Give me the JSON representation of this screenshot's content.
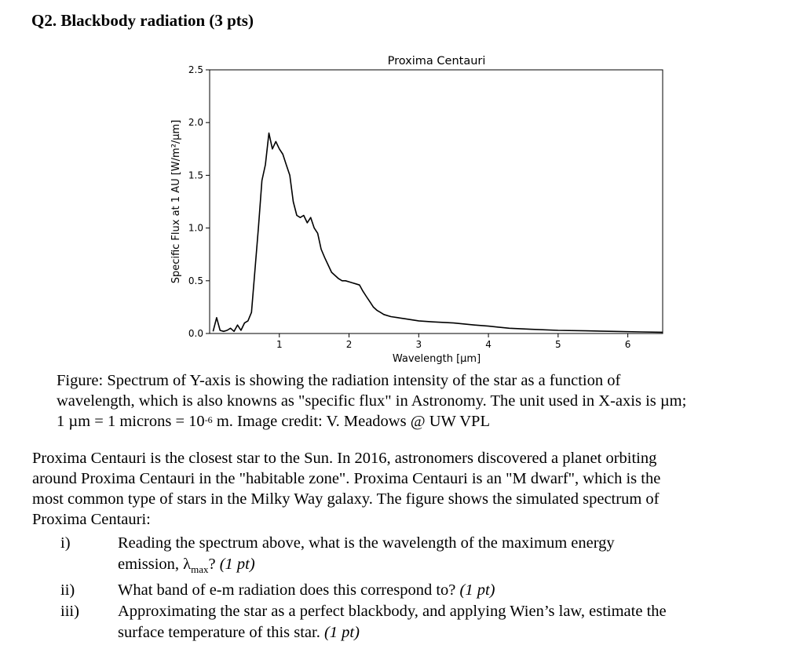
{
  "question_title": "Q2. Blackbody radiation (3 pts)",
  "chart_data": {
    "type": "line",
    "title": "Proxima Centauri",
    "xlabel": "Wavelength [μm]",
    "ylabel": "Specific Flux at 1 AU [W/m²/μm]",
    "xlim": [
      0,
      6.5
    ],
    "ylim": [
      0,
      2.5
    ],
    "xticks": [
      1,
      2,
      3,
      4,
      5,
      6
    ],
    "yticks": [
      0.0,
      0.5,
      1.0,
      1.5,
      2.0,
      2.5
    ],
    "ytick_labels": [
      "0.0",
      "0.5",
      "1.0",
      "1.5",
      "2.0",
      "2.5"
    ],
    "grid": false,
    "series": [
      {
        "x": [
          0.05,
          0.1,
          0.15,
          0.2,
          0.25,
          0.3,
          0.35,
          0.4,
          0.45,
          0.5,
          0.55,
          0.6,
          0.65,
          0.7,
          0.75,
          0.8,
          0.85,
          0.9,
          0.95,
          1.0,
          1.05,
          1.1,
          1.15,
          1.2,
          1.25,
          1.3,
          1.35,
          1.4,
          1.45,
          1.5,
          1.55,
          1.6,
          1.65,
          1.7,
          1.75,
          1.8,
          1.85,
          1.9,
          1.95,
          2.0,
          2.05,
          2.1,
          2.15,
          2.2,
          2.25,
          2.3,
          2.35,
          2.4,
          2.45,
          2.5,
          2.6,
          2.7,
          2.8,
          3.0,
          3.2,
          3.5,
          3.8,
          4.0,
          4.3,
          4.6,
          5.0,
          5.4,
          5.8,
          6.2,
          6.5
        ],
        "y": [
          0.02,
          0.15,
          0.03,
          0.02,
          0.03,
          0.05,
          0.02,
          0.08,
          0.03,
          0.1,
          0.12,
          0.2,
          0.6,
          1.0,
          1.45,
          1.6,
          1.9,
          1.75,
          1.82,
          1.75,
          1.7,
          1.6,
          1.5,
          1.25,
          1.12,
          1.1,
          1.12,
          1.05,
          1.1,
          1.0,
          0.95,
          0.8,
          0.72,
          0.65,
          0.58,
          0.55,
          0.52,
          0.5,
          0.5,
          0.49,
          0.48,
          0.47,
          0.46,
          0.4,
          0.35,
          0.3,
          0.25,
          0.22,
          0.2,
          0.18,
          0.16,
          0.15,
          0.14,
          0.12,
          0.11,
          0.1,
          0.08,
          0.07,
          0.05,
          0.04,
          0.03,
          0.025,
          0.02,
          0.015,
          0.012
        ]
      }
    ]
  },
  "caption": {
    "line1": "Figure: Spectrum of Y-axis is showing the radiation intensity of the star as a function of",
    "line2": "wavelength, which is also knowns as \"specific flux\" in Astronomy. The unit used in X-axis is µm;",
    "line3_pre": "1 µm = 1 microns = 10",
    "line3_sup": "-6",
    "line3_post": " m. Image credit: V. Meadows @ UW VPL"
  },
  "intro": {
    "line1": "Proxima Centauri is the closest star to the Sun. In 2016, astronomers discovered a planet orbiting",
    "line2": "around Proxima Centauri in the \"habitable zone\". Proxima Centauri is an \"M dwarf\", which is the",
    "line3": "most common type of stars in the Milky Way galaxy. The figure shows the simulated spectrum of",
    "line4": "Proxima Centauri:"
  },
  "questions": [
    {
      "num": "i)",
      "line1": "Reading the spectrum above, what is the wavelength of the maximum energy",
      "line2_pre": "emission, λ",
      "line2_sub": "max",
      "line2_post": "? ",
      "pts": "(1 pt)"
    },
    {
      "num": "ii)",
      "line1": "What band of e-m radiation does this correspond to? ",
      "pts": "(1 pt)"
    },
    {
      "num": "iii)",
      "line1": "Approximating the star as a perfect blackbody, and applying Wien’s law, estimate the",
      "line2": "surface temperature of this star. ",
      "pts": "(1 pt)"
    }
  ]
}
